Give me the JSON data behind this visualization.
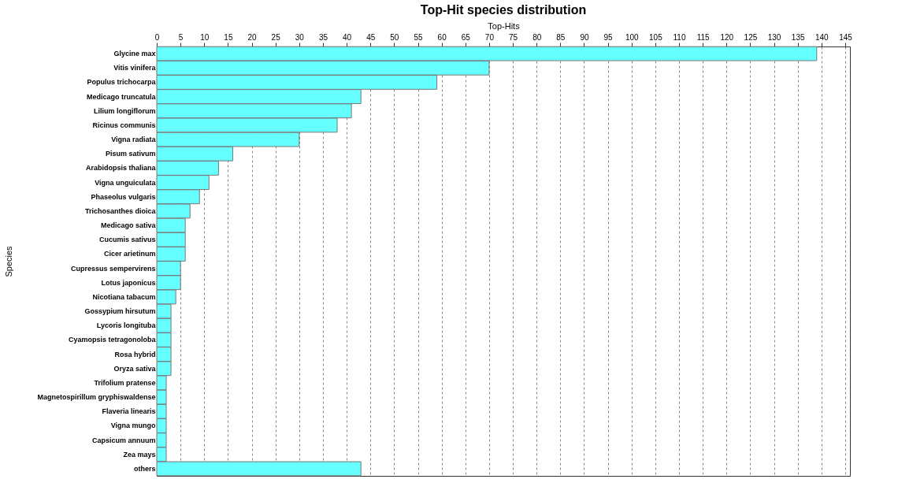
{
  "chart_data": {
    "type": "bar",
    "orientation": "horizontal",
    "title": "Top-Hit species distribution",
    "xlabel": "Top-Hits",
    "ylabel": "Species",
    "categories": [
      "Glycine max",
      "Vitis vinifera",
      "Populus trichocarpa",
      "Medicago truncatula",
      "Lilium longiflorum",
      "Ricinus communis",
      "Vigna radiata",
      "Pisum sativum",
      "Arabidopsis thaliana",
      "Vigna unguiculata",
      "Phaseolus vulgaris",
      "Trichosanthes dioica",
      "Medicago sativa",
      "Cucumis sativus",
      "Cicer arietinum",
      "Cupressus sempervirens",
      "Lotus japonicus",
      "Nicotiana tabacum",
      "Gossypium hirsutum",
      "Lycoris longituba",
      "Cyamopsis tetragonoloba",
      "Rosa hybrid",
      "Oryza sativa",
      "Trifolium pratense",
      "Magnetospirillum gryphiswaldense",
      "Flaveria linearis",
      "Vigna mungo",
      "Capsicum annuum",
      "Zea mays",
      "others"
    ],
    "values": [
      139,
      70,
      59,
      43,
      41,
      38,
      30,
      16,
      13,
      11,
      9,
      7,
      6,
      6,
      6,
      5,
      5,
      4,
      3,
      3,
      3,
      3,
      3,
      2,
      2,
      2,
      2,
      2,
      2,
      43
    ],
    "color": "#66ffff",
    "xlim": [
      0,
      146
    ],
    "xticks": [
      0,
      5,
      10,
      15,
      20,
      25,
      30,
      35,
      40,
      45,
      50,
      55,
      60,
      65,
      70,
      75,
      80,
      85,
      90,
      95,
      100,
      105,
      110,
      115,
      120,
      125,
      130,
      135,
      140,
      145
    ],
    "grid": "x"
  }
}
